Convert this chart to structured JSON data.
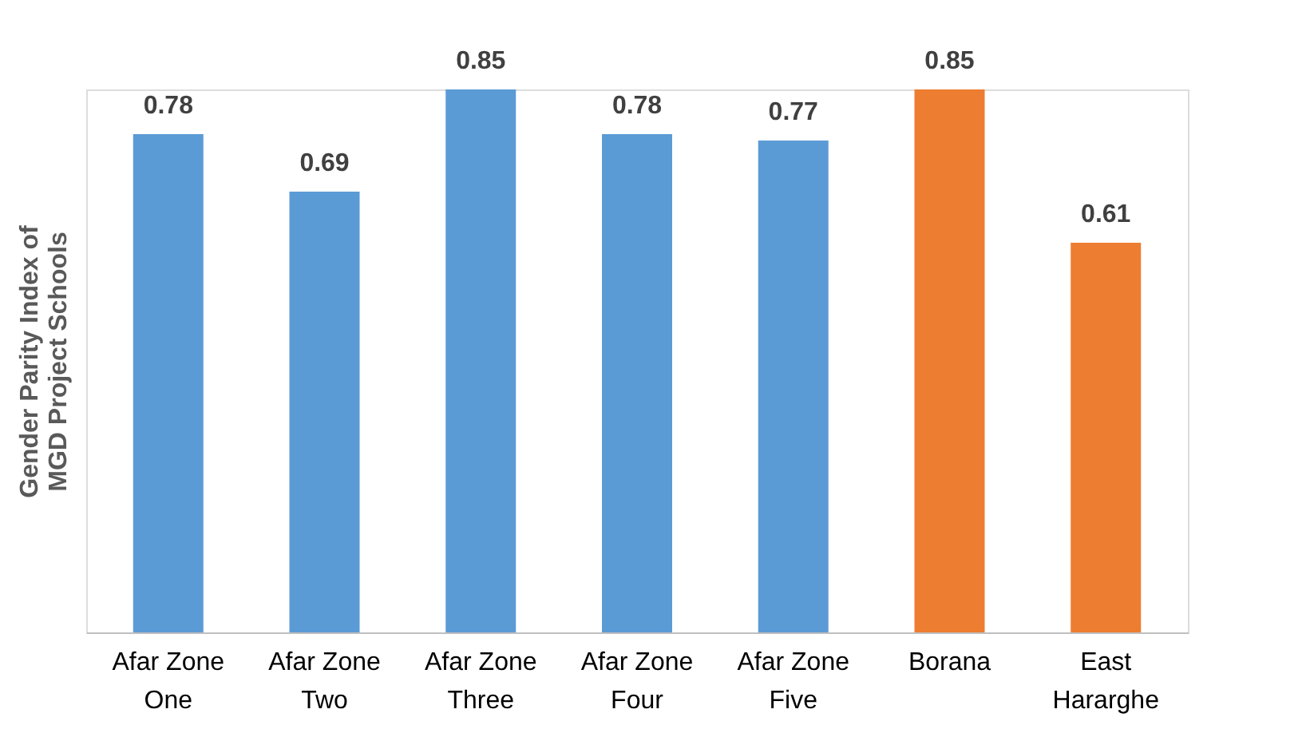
{
  "chart_data": {
    "type": "bar",
    "ylabel": "Gender Parity Index of\nMGD Project Schools",
    "categories": [
      "Afar Zone One",
      "Afar Zone Two",
      "Afar Zone Three",
      "Afar Zone Four",
      "Afar Zone Five",
      "Borana",
      "East Hararghe"
    ],
    "values": [
      0.78,
      0.69,
      0.85,
      0.78,
      0.77,
      0.85,
      0.61
    ],
    "colors": [
      "#5b9bd5",
      "#5b9bd5",
      "#5b9bd5",
      "#5b9bd5",
      "#5b9bd5",
      "#ed7d31",
      "#ed7d31"
    ],
    "data_labels": true
  }
}
